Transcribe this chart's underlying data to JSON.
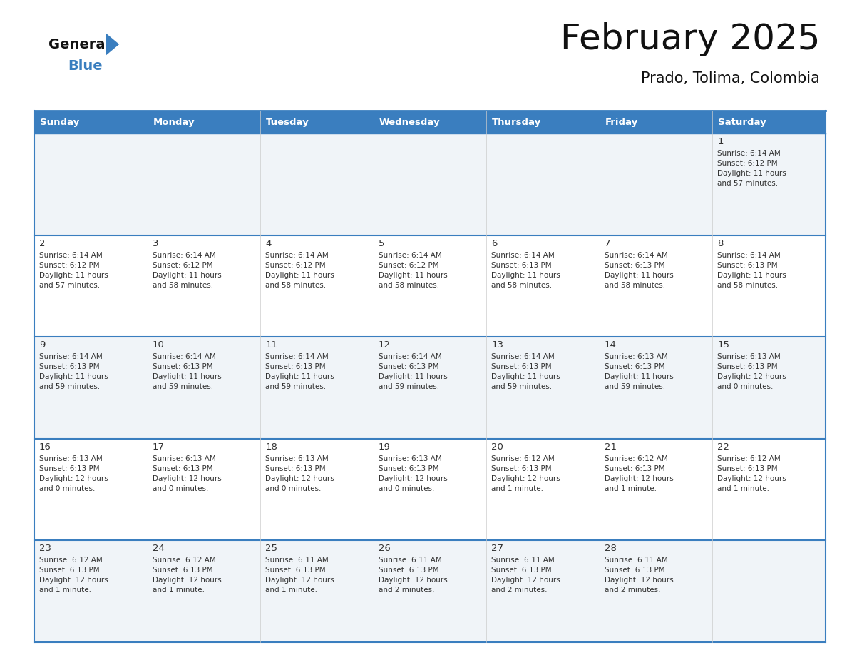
{
  "title": "February 2025",
  "subtitle": "Prado, Tolima, Colombia",
  "header_bg_color": "#3a7ebf",
  "header_text_color": "#ffffff",
  "cell_bg_even": "#f0f4f8",
  "cell_bg_odd": "#ffffff",
  "text_color": "#333333",
  "border_color": "#3a7ebf",
  "days_of_week": [
    "Sunday",
    "Monday",
    "Tuesday",
    "Wednesday",
    "Thursday",
    "Friday",
    "Saturday"
  ],
  "weeks": [
    [
      {
        "day": null,
        "sunrise": null,
        "sunset": null,
        "daylight": null
      },
      {
        "day": null,
        "sunrise": null,
        "sunset": null,
        "daylight": null
      },
      {
        "day": null,
        "sunrise": null,
        "sunset": null,
        "daylight": null
      },
      {
        "day": null,
        "sunrise": null,
        "sunset": null,
        "daylight": null
      },
      {
        "day": null,
        "sunrise": null,
        "sunset": null,
        "daylight": null
      },
      {
        "day": null,
        "sunrise": null,
        "sunset": null,
        "daylight": null
      },
      {
        "day": 1,
        "sunrise": "6:14 AM",
        "sunset": "6:12 PM",
        "daylight": "11 hours\nand 57 minutes."
      }
    ],
    [
      {
        "day": 2,
        "sunrise": "6:14 AM",
        "sunset": "6:12 PM",
        "daylight": "11 hours\nand 57 minutes."
      },
      {
        "day": 3,
        "sunrise": "6:14 AM",
        "sunset": "6:12 PM",
        "daylight": "11 hours\nand 58 minutes."
      },
      {
        "day": 4,
        "sunrise": "6:14 AM",
        "sunset": "6:12 PM",
        "daylight": "11 hours\nand 58 minutes."
      },
      {
        "day": 5,
        "sunrise": "6:14 AM",
        "sunset": "6:12 PM",
        "daylight": "11 hours\nand 58 minutes."
      },
      {
        "day": 6,
        "sunrise": "6:14 AM",
        "sunset": "6:13 PM",
        "daylight": "11 hours\nand 58 minutes."
      },
      {
        "day": 7,
        "sunrise": "6:14 AM",
        "sunset": "6:13 PM",
        "daylight": "11 hours\nand 58 minutes."
      },
      {
        "day": 8,
        "sunrise": "6:14 AM",
        "sunset": "6:13 PM",
        "daylight": "11 hours\nand 58 minutes."
      }
    ],
    [
      {
        "day": 9,
        "sunrise": "6:14 AM",
        "sunset": "6:13 PM",
        "daylight": "11 hours\nand 59 minutes."
      },
      {
        "day": 10,
        "sunrise": "6:14 AM",
        "sunset": "6:13 PM",
        "daylight": "11 hours\nand 59 minutes."
      },
      {
        "day": 11,
        "sunrise": "6:14 AM",
        "sunset": "6:13 PM",
        "daylight": "11 hours\nand 59 minutes."
      },
      {
        "day": 12,
        "sunrise": "6:14 AM",
        "sunset": "6:13 PM",
        "daylight": "11 hours\nand 59 minutes."
      },
      {
        "day": 13,
        "sunrise": "6:14 AM",
        "sunset": "6:13 PM",
        "daylight": "11 hours\nand 59 minutes."
      },
      {
        "day": 14,
        "sunrise": "6:13 AM",
        "sunset": "6:13 PM",
        "daylight": "11 hours\nand 59 minutes."
      },
      {
        "day": 15,
        "sunrise": "6:13 AM",
        "sunset": "6:13 PM",
        "daylight": "12 hours\nand 0 minutes."
      }
    ],
    [
      {
        "day": 16,
        "sunrise": "6:13 AM",
        "sunset": "6:13 PM",
        "daylight": "12 hours\nand 0 minutes."
      },
      {
        "day": 17,
        "sunrise": "6:13 AM",
        "sunset": "6:13 PM",
        "daylight": "12 hours\nand 0 minutes."
      },
      {
        "day": 18,
        "sunrise": "6:13 AM",
        "sunset": "6:13 PM",
        "daylight": "12 hours\nand 0 minutes."
      },
      {
        "day": 19,
        "sunrise": "6:13 AM",
        "sunset": "6:13 PM",
        "daylight": "12 hours\nand 0 minutes."
      },
      {
        "day": 20,
        "sunrise": "6:12 AM",
        "sunset": "6:13 PM",
        "daylight": "12 hours\nand 1 minute."
      },
      {
        "day": 21,
        "sunrise": "6:12 AM",
        "sunset": "6:13 PM",
        "daylight": "12 hours\nand 1 minute."
      },
      {
        "day": 22,
        "sunrise": "6:12 AM",
        "sunset": "6:13 PM",
        "daylight": "12 hours\nand 1 minute."
      }
    ],
    [
      {
        "day": 23,
        "sunrise": "6:12 AM",
        "sunset": "6:13 PM",
        "daylight": "12 hours\nand 1 minute."
      },
      {
        "day": 24,
        "sunrise": "6:12 AM",
        "sunset": "6:13 PM",
        "daylight": "12 hours\nand 1 minute."
      },
      {
        "day": 25,
        "sunrise": "6:11 AM",
        "sunset": "6:13 PM",
        "daylight": "12 hours\nand 1 minute."
      },
      {
        "day": 26,
        "sunrise": "6:11 AM",
        "sunset": "6:13 PM",
        "daylight": "12 hours\nand 2 minutes."
      },
      {
        "day": 27,
        "sunrise": "6:11 AM",
        "sunset": "6:13 PM",
        "daylight": "12 hours\nand 2 minutes."
      },
      {
        "day": 28,
        "sunrise": "6:11 AM",
        "sunset": "6:13 PM",
        "daylight": "12 hours\nand 2 minutes."
      },
      {
        "day": null,
        "sunrise": null,
        "sunset": null,
        "daylight": null
      }
    ]
  ]
}
